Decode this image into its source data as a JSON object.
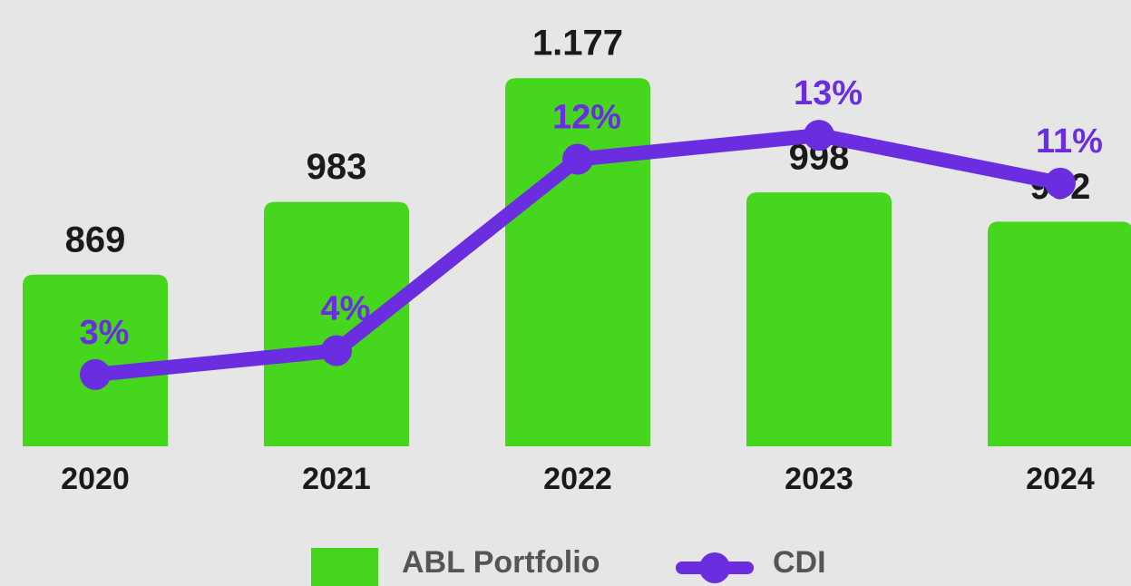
{
  "chart_data": {
    "type": "bar-line",
    "categories": [
      "2020",
      "2021",
      "2022",
      "2023",
      "2024"
    ],
    "series": [
      {
        "name": "ABL Portfolio",
        "color": "#45d61d",
        "values": [
          869,
          983,
          1177,
          998,
          952
        ],
        "value_labels": [
          "869",
          "983",
          "1.177",
          "998",
          "952"
        ]
      },
      {
        "name": "CDI",
        "color": "#6a2ee0",
        "axis": "y2",
        "values": [
          3,
          4,
          12,
          13,
          11
        ],
        "value_labels": [
          "3%",
          "4%",
          "12%",
          "13%",
          "11%"
        ]
      }
    ],
    "ylim": [
      600,
      1200
    ],
    "y2lim": [
      0,
      16
    ]
  }
}
